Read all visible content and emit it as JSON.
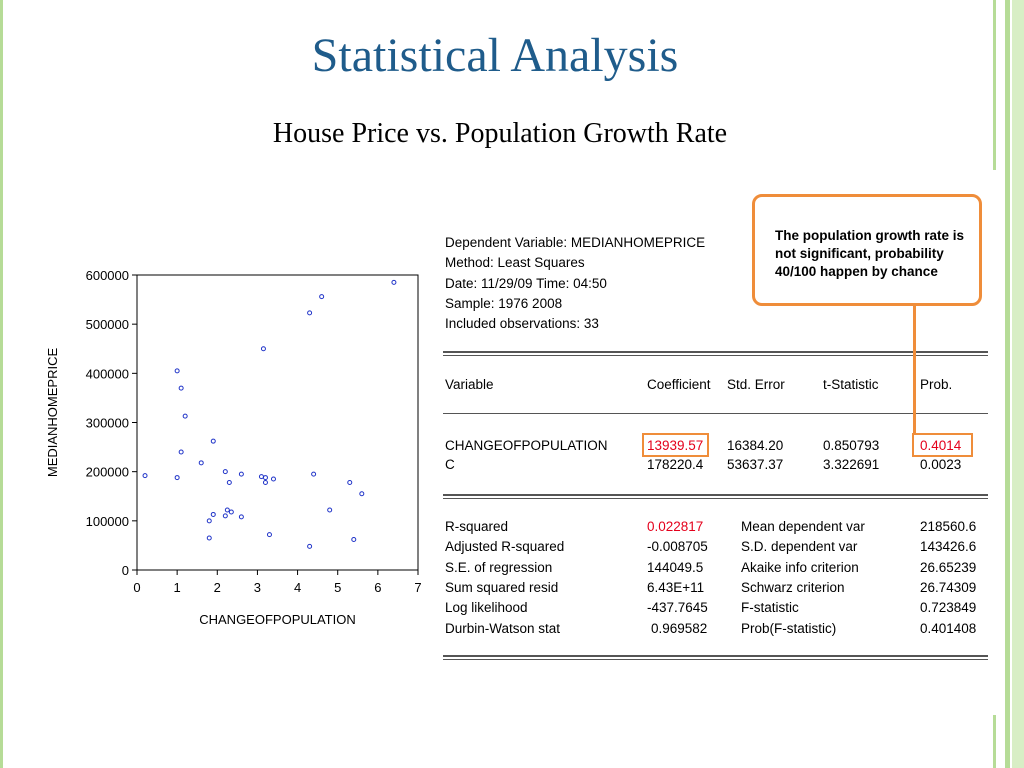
{
  "slide": {
    "title": "Statistical Analysis",
    "subtitle": "House Price vs. Population Growth Rate"
  },
  "chart_data": {
    "type": "scatter",
    "xlabel": "CHANGEOFPOPULATION",
    "ylabel": "MEDIANHOMEPRICE",
    "xlim": [
      0,
      7
    ],
    "ylim": [
      0,
      600000
    ],
    "x_ticks": [
      "0",
      "1",
      "2",
      "3",
      "4",
      "5",
      "6",
      "7"
    ],
    "y_ticks": [
      "0",
      "100000",
      "200000",
      "300000",
      "400000",
      "500000",
      "600000"
    ],
    "grid": false,
    "marker_color": "#1f33c8",
    "points": [
      [
        0.2,
        192000
      ],
      [
        1.0,
        405000
      ],
      [
        1.0,
        188000
      ],
      [
        1.1,
        370000
      ],
      [
        1.1,
        240000
      ],
      [
        1.2,
        313000
      ],
      [
        1.6,
        218000
      ],
      [
        1.8,
        100000
      ],
      [
        1.8,
        65000
      ],
      [
        1.9,
        262000
      ],
      [
        1.9,
        113000
      ],
      [
        2.2,
        200000
      ],
      [
        2.2,
        110000
      ],
      [
        2.25,
        122000
      ],
      [
        2.3,
        178000
      ],
      [
        2.35,
        118000
      ],
      [
        2.6,
        195000
      ],
      [
        2.6,
        108000
      ],
      [
        3.1,
        190000
      ],
      [
        3.15,
        450000
      ],
      [
        3.2,
        178000
      ],
      [
        3.2,
        188000
      ],
      [
        3.3,
        72000
      ],
      [
        3.4,
        185000
      ],
      [
        4.3,
        523000
      ],
      [
        4.3,
        48000
      ],
      [
        4.4,
        195000
      ],
      [
        4.6,
        556000
      ],
      [
        4.8,
        122000
      ],
      [
        5.3,
        178000
      ],
      [
        5.4,
        62000
      ],
      [
        5.6,
        155000
      ],
      [
        6.4,
        585000
      ]
    ]
  },
  "regression": {
    "header_lines": [
      "Dependent Variable: MEDIANHOMEPRICE",
      "Method: Least Squares",
      "Date: 11/29/09   Time:  04:50",
      "Sample: 1976 2008",
      "Included observations: 33"
    ],
    "columns": [
      "Variable",
      "Coefficient",
      "Std. Error",
      "t-Statistic",
      "Prob."
    ],
    "rows": [
      [
        "CHANGEOFPOPULATION",
        "13939.57",
        "16384.20",
        "0.850793",
        "0.4014"
      ],
      [
        "C",
        "178220.4",
        "53637.37",
        "3.322691",
        "0.0023"
      ]
    ],
    "stats": [
      [
        "R-squared",
        "0.022817",
        "Mean dependent var",
        "218560.6"
      ],
      [
        "Adjusted R-squared",
        "-0.008705",
        "S.D. dependent var",
        "143426.6"
      ],
      [
        "S.E. of regression",
        "144049.5",
        "Akaike info criterion",
        "26.65239"
      ],
      [
        "Sum squared resid",
        "6.43E+11",
        "Schwarz criterion",
        "26.74309"
      ],
      [
        "Log likelihood",
        "-437.7645",
        "F-statistic",
        "0.723849"
      ],
      [
        "Durbin-Watson stat",
        "0.969582",
        "Prob(F-statistic)",
        "0.401408"
      ]
    ],
    "highlight_color": "#ef8d3a",
    "red_color": "#e4001b"
  },
  "callout": {
    "text": "The population growth rate is not significant, probability 40/100 happen by chance"
  }
}
